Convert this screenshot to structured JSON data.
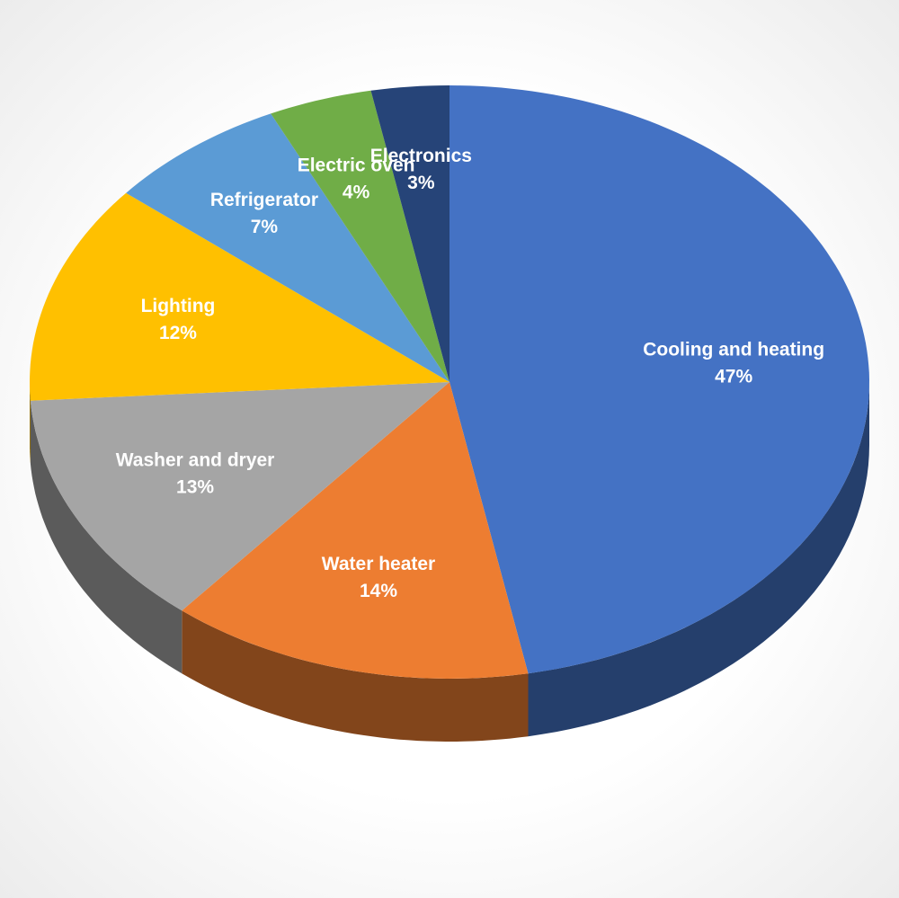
{
  "chart_data": {
    "type": "pie",
    "categories": [
      "Cooling and heating",
      "Water heater",
      "Washer and dryer",
      "Lighting",
      "Refrigerator",
      "Electric oven",
      "Electronics"
    ],
    "values": [
      47,
      14,
      13,
      12,
      7,
      4,
      3
    ],
    "value_labels": [
      "47%",
      "14%",
      "13%",
      "12%",
      "7%",
      "4%",
      "3%"
    ],
    "colors": [
      "#4472c4",
      "#ed7d31",
      "#a5a5a5",
      "#ffc000",
      "#5b9bd5",
      "#70ad47",
      "#264478"
    ]
  }
}
